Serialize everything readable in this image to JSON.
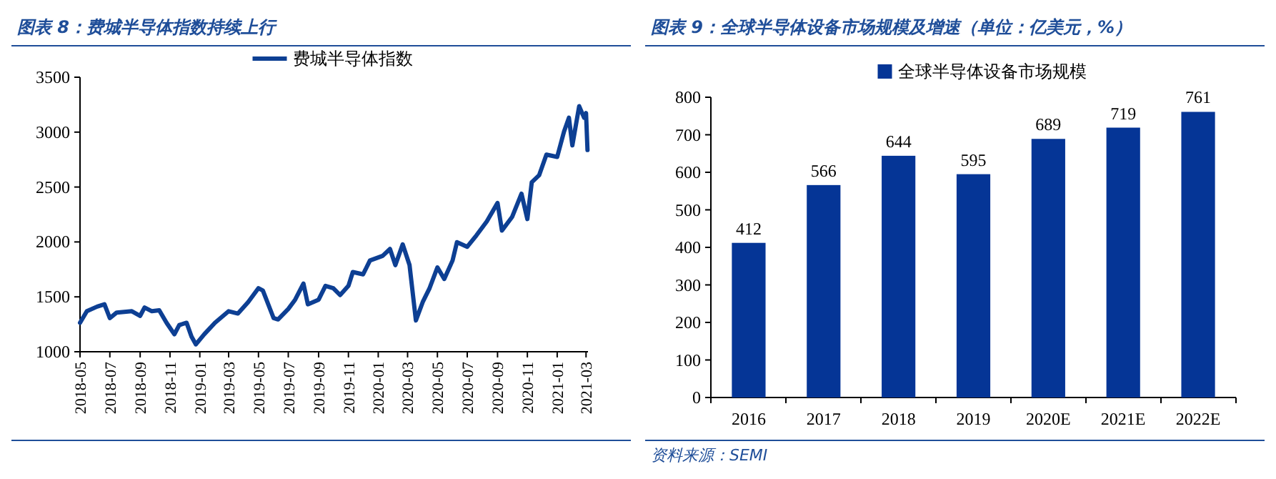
{
  "chart_data": [
    {
      "type": "line",
      "title": "图表 8：费城半导体指数持续上行",
      "legend": "top",
      "grid": false,
      "xlim": [
        "2018-05-01",
        "2021-03-05"
      ],
      "xticks": [
        "2018-05",
        "2018-07",
        "2018-09",
        "2018-11",
        "2019-01",
        "2019-03",
        "2019-05",
        "2019-07",
        "2019-09",
        "2019-11",
        "2020-01",
        "2020-03",
        "2020-05",
        "2020-07",
        "2020-09",
        "2020-11",
        "2021-01",
        "2021-03"
      ],
      "ylim": [
        1000,
        3500
      ],
      "yticks": [
        1000,
        1500,
        2000,
        2500,
        3000,
        3500
      ],
      "x": [
        "2018-05-01",
        "2018-05-15",
        "2018-06-05",
        "2018-06-20",
        "2018-07-01",
        "2018-07-15",
        "2018-08-15",
        "2018-09-01",
        "2018-09-10",
        "2018-09-25",
        "2018-10-10",
        "2018-10-25",
        "2018-11-10",
        "2018-11-20",
        "2018-12-05",
        "2018-12-15",
        "2018-12-24",
        "2019-01-10",
        "2019-02-01",
        "2019-03-01",
        "2019-03-20",
        "2019-04-10",
        "2019-05-01",
        "2019-05-10",
        "2019-06-01",
        "2019-06-10",
        "2019-07-01",
        "2019-07-15",
        "2019-08-01",
        "2019-08-10",
        "2019-09-01",
        "2019-09-15",
        "2019-10-01",
        "2019-10-15",
        "2019-11-01",
        "2019-11-10",
        "2019-12-01",
        "2019-12-15",
        "2020-01-10",
        "2020-01-25",
        "2020-02-05",
        "2020-02-20",
        "2020-03-05",
        "2020-03-18",
        "2020-04-01",
        "2020-04-15",
        "2020-05-01",
        "2020-05-15",
        "2020-06-01",
        "2020-06-10",
        "2020-07-01",
        "2020-07-20",
        "2020-08-10",
        "2020-09-01",
        "2020-09-10",
        "2020-10-01",
        "2020-10-20",
        "2020-11-01",
        "2020-11-10",
        "2020-11-25",
        "2020-12-10",
        "2021-01-01",
        "2021-01-15",
        "2021-01-25",
        "2021-02-01",
        "2021-02-15",
        "2021-02-25",
        "2021-03-01",
        "2021-03-04"
      ],
      "series": [
        {
          "name": "费城半导体指数",
          "color": "#0d3f93",
          "values": [
            1264,
            1369,
            1411,
            1432,
            1306,
            1357,
            1369,
            1327,
            1403,
            1369,
            1378,
            1264,
            1159,
            1243,
            1264,
            1138,
            1067,
            1159,
            1264,
            1369,
            1348,
            1453,
            1579,
            1558,
            1306,
            1294,
            1390,
            1474,
            1621,
            1432,
            1474,
            1600,
            1579,
            1516,
            1600,
            1726,
            1705,
            1831,
            1873,
            1936,
            1789,
            1978,
            1789,
            1285,
            1453,
            1579,
            1768,
            1663,
            1831,
            1998,
            1956,
            2061,
            2187,
            2355,
            2103,
            2229,
            2439,
            2208,
            2544,
            2607,
            2795,
            2774,
            3005,
            3131,
            2879,
            3236,
            3131,
            3173,
            2837
          ]
        }
      ]
    },
    {
      "type": "bar",
      "title": "图表 9：全球半导体设备市场规模及增速（单位：亿美元，%）",
      "legend": "top",
      "grid": false,
      "data_labels": true,
      "categories": [
        "2016",
        "2017",
        "2018",
        "2019",
        "2020E",
        "2021E",
        "2022E"
      ],
      "ylim": [
        0,
        800
      ],
      "yticks": [
        0,
        100,
        200,
        300,
        400,
        500,
        600,
        700,
        800
      ],
      "series": [
        {
          "name": "全球半导体设备市场规模",
          "color": "#053596",
          "values": [
            412,
            566,
            644,
            595,
            689,
            719,
            761
          ]
        }
      ],
      "annotations": [
        "资料来源：SEMI"
      ]
    }
  ]
}
